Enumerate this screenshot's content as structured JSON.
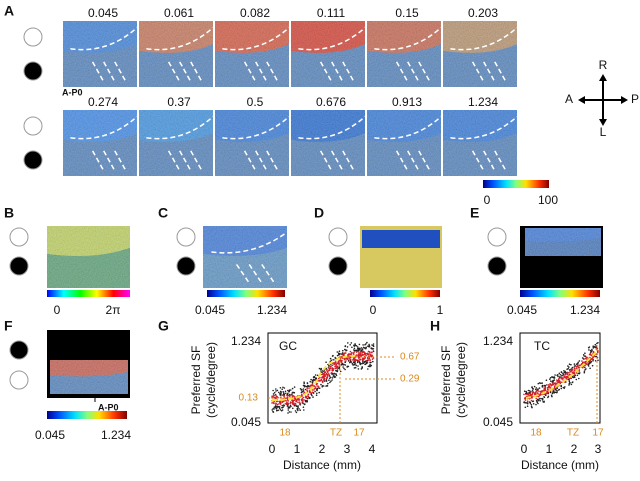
{
  "panels": {
    "A": {
      "label": "A",
      "top_values": [
        "0.045",
        "0.061",
        "0.082",
        "0.111",
        "0.15",
        "0.203"
      ],
      "bottom_values": [
        "0.274",
        "0.37",
        "0.5",
        "0.676",
        "0.913",
        "1.234"
      ],
      "marker": "A-P0",
      "colorbar": [
        "0",
        "100"
      ]
    },
    "compass": {
      "up": "R",
      "left": "A",
      "right": "P",
      "down": "L"
    },
    "B": {
      "label": "B",
      "colorbar": [
        "0",
        "2π"
      ]
    },
    "C": {
      "label": "C",
      "colorbar": [
        "0.045",
        "1.234"
      ]
    },
    "D": {
      "label": "D",
      "colorbar": [
        "0",
        "1"
      ]
    },
    "E": {
      "label": "E",
      "colorbar": [
        "0.045",
        "1.234"
      ]
    },
    "F": {
      "label": "F",
      "marker": "A-P0",
      "colorbar": [
        "0.045",
        "1.234"
      ]
    },
    "G": {
      "label": "G",
      "y_label": [
        "Preferred SF",
        "(cycle/degree)"
      ],
      "yticks": [
        "1.234",
        "0.045"
      ],
      "xticks": [
        "0",
        "1",
        "2",
        "3",
        "4"
      ],
      "x_label": "Distance (mm)",
      "inset": "GC",
      "annotations": [
        "0.67",
        "0.29",
        "0.13",
        "18",
        "TZ",
        "17"
      ]
    },
    "H": {
      "label": "H",
      "y_label": [
        "Preferred SF",
        "(cycle/degree)"
      ],
      "yticks": [
        "1.234",
        "0.045"
      ],
      "xticks": [
        "0",
        "1",
        "2",
        "3"
      ],
      "x_label": "Distance (mm)",
      "inset": "TC",
      "annotations": [
        "18",
        "TZ",
        "17"
      ]
    }
  }
}
